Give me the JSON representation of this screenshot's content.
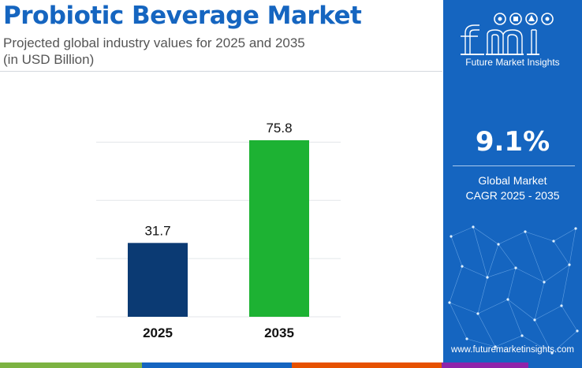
{
  "header": {
    "title": "Probiotic Beverage Market",
    "subtitle_line1": "Projected global industry values for 2025 and 2035",
    "subtitle_line2": "(in USD Billion)"
  },
  "colors": {
    "title": "#1565c0",
    "panel": "#1565c0",
    "bar_2025": "#0b3a73",
    "bar_2035": "#1db233",
    "gridline": "#e3e6ea",
    "stripe": [
      "#7cb342",
      "#1565c0",
      "#e65100",
      "#8e24aa",
      "#1565c0"
    ]
  },
  "chart_data": {
    "type": "bar",
    "categories": [
      "2025",
      "2035"
    ],
    "values": [
      31.7,
      75.8
    ],
    "data_labels": [
      "31.7",
      "75.8"
    ],
    "title": "Probiotic Beverage Market",
    "ylim": [
      0,
      90
    ],
    "grid": true,
    "legend": false
  },
  "sidebar": {
    "logo_letters": "fmi",
    "brand_name": "Future Market Insights",
    "cagr_value": "9.1%",
    "cagr_label_line1": "Global Market",
    "cagr_label_line2": "CAGR 2025 - 2035",
    "website": "www.futuremarketinsights.com"
  }
}
